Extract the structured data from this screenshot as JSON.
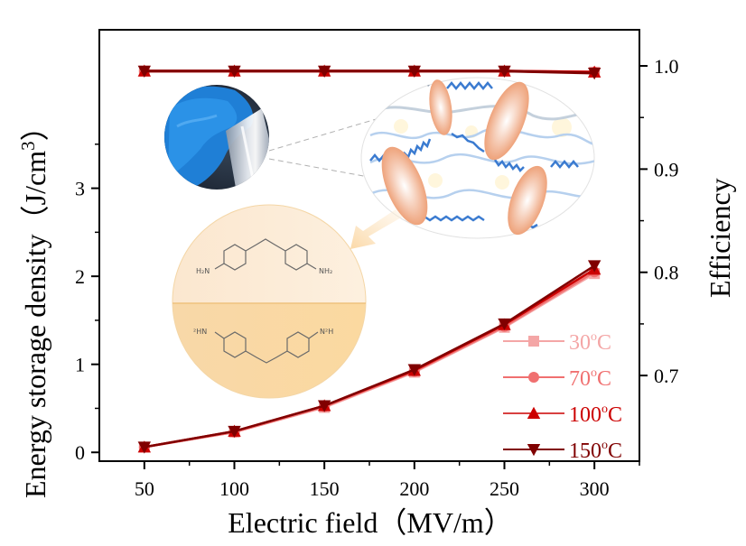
{
  "chart_data": {
    "type": "line",
    "title": "",
    "xlabel": "Electric field（MV/m）",
    "ylabel": "Energy storage density（J/cm",
    "ylabel_sup": "3",
    "ylabel_close": "）",
    "y2label": "Efficiency",
    "x": [
      50,
      100,
      150,
      200,
      250,
      300
    ],
    "x_ticks": [
      "50",
      "100",
      "150",
      "200",
      "250",
      "300"
    ],
    "xlim": [
      25,
      325
    ],
    "ylim": [
      -0.1,
      4.8
    ],
    "y_ticks": [
      "0",
      "1",
      "2",
      "3"
    ],
    "y2lim": [
      0.617,
      1.035
    ],
    "y2_ticks": [
      "0.7",
      "0.8",
      "0.9",
      "1.0"
    ],
    "grid": false,
    "legend_position": "bottom-right",
    "series": [
      {
        "name": "30°C",
        "label_num": "30",
        "axis": "left",
        "marker": "square",
        "color": "#F4A6A6",
        "values": [
          0.06,
          0.23,
          0.51,
          0.91,
          1.42,
          2.03
        ]
      },
      {
        "name": "70°C",
        "label_num": "70",
        "axis": "left",
        "marker": "circle",
        "color": "#F07070",
        "values": [
          0.06,
          0.23,
          0.52,
          0.92,
          1.43,
          2.05
        ]
      },
      {
        "name": "100°C",
        "label_num": "100",
        "axis": "left",
        "marker": "triangle-up",
        "color": "#CC0000",
        "values": [
          0.06,
          0.24,
          0.53,
          0.93,
          1.45,
          2.08
        ]
      },
      {
        "name": "150°C",
        "label_num": "150",
        "axis": "left",
        "marker": "triangle-down",
        "color": "#800000",
        "values": [
          0.06,
          0.24,
          0.53,
          0.94,
          1.46,
          2.12
        ]
      },
      {
        "name": "30°C efficiency",
        "axis": "right",
        "marker": "square",
        "color": "#F4A6A6",
        "values": [
          0.995,
          0.995,
          0.995,
          0.995,
          0.995,
          0.994
        ]
      },
      {
        "name": "70°C efficiency",
        "axis": "right",
        "marker": "circle",
        "color": "#F07070",
        "values": [
          0.995,
          0.995,
          0.995,
          0.995,
          0.995,
          0.994
        ]
      },
      {
        "name": "100°C efficiency",
        "axis": "right",
        "marker": "triangle-up",
        "color": "#CC0000",
        "values": [
          0.995,
          0.995,
          0.995,
          0.995,
          0.995,
          0.994
        ]
      },
      {
        "name": "150°C efficiency",
        "axis": "right",
        "marker": "triangle-down",
        "color": "#800000",
        "values": [
          0.995,
          0.995,
          0.995,
          0.995,
          0.995,
          0.993
        ]
      }
    ],
    "degree_symbol": "o",
    "unit_letter": "C",
    "insets": [
      {
        "name": "film-photo",
        "description": "transparent polymer film held in blue gloved hand"
      },
      {
        "name": "molecular-structure-schematic",
        "description": "polymer chains crosslinked with ellipsoidal segments"
      },
      {
        "name": "diamine-structures",
        "top": {
          "left_group": "H₂N",
          "right_group": "NH₂"
        },
        "bottom": {
          "left_group": "²HN",
          "right_group": "N²H"
        }
      }
    ]
  }
}
